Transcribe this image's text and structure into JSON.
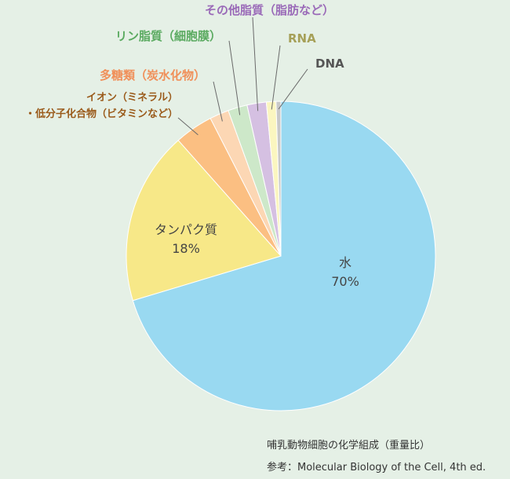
{
  "chart_data": {
    "type": "pie",
    "title": "",
    "slices": [
      {
        "label": "水",
        "value": 70,
        "value_label": "70%",
        "color": "#99d9f1"
      },
      {
        "label": "タンパク質",
        "value": 18,
        "value_label": "18%",
        "color": "#f7e888"
      },
      {
        "label_lines": [
          "イオン（ミネラル）",
          "・低分子化合物（ビタミンなど）"
        ],
        "value": 4,
        "color": "#fbbf82",
        "label_color": "#9a5a1a"
      },
      {
        "label": "多糖類（炭水化物）",
        "value": 2,
        "color": "#fcd7b4",
        "label_color": "#f0905a"
      },
      {
        "label": "リン脂質（細胞膜）",
        "value": 2,
        "color": "#cde8c9",
        "label_color": "#5aaa60"
      },
      {
        "label": "その他脂質（脂肪など）",
        "value": 2,
        "color": "#d5c0e2",
        "label_color": "#9a6ab8"
      },
      {
        "label": "RNA",
        "value": 1,
        "color": "#fbf6c0",
        "label_color": "#a6a058"
      },
      {
        "label": "DNA",
        "value": 0.5,
        "color": "#c9c9c9",
        "label_color": "#555555"
      }
    ]
  },
  "footer": {
    "caption": "哺乳動物細胞の化学組成（重量比）",
    "source": "参考：Molecular Biology of the Cell, 4th ed."
  }
}
